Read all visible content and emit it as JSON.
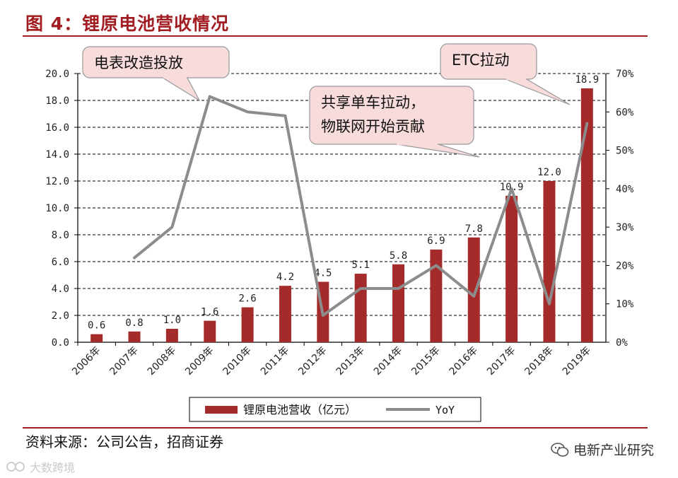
{
  "figure": {
    "title": "图 4：锂原电池营收情况",
    "source": "资料来源：公司公告，招商证券",
    "watermark_right": "电新产业研究",
    "watermark_left": "大数跨境",
    "watermark_right_icon": "chat-bubbles-icon",
    "watermark_left_icon": "logo-icon"
  },
  "chart_data": {
    "type": "bar",
    "categories": [
      "2006年",
      "2007年",
      "2008年",
      "2009年",
      "2010年",
      "2011年",
      "2012年",
      "2013年",
      "2014年",
      "2015年",
      "2016年",
      "2017年",
      "2018年",
      "2019年"
    ],
    "series": [
      {
        "name": "锂原电池营收（亿元）",
        "type": "bar",
        "axis": "left",
        "color": "#a52a2a",
        "values": [
          0.6,
          0.8,
          1.0,
          1.6,
          2.6,
          4.2,
          4.5,
          5.1,
          5.8,
          6.9,
          7.8,
          10.9,
          12.0,
          18.9
        ],
        "labels": [
          "0.6",
          "0.8",
          "1.0",
          "1.6",
          "2.6",
          "4.2",
          "4.5",
          "5.1",
          "5.8",
          "6.9",
          "7.8",
          "10.9",
          "12.0",
          "18.9"
        ]
      },
      {
        "name": "YoY",
        "type": "line",
        "axis": "right",
        "color": "#8c8c8c",
        "values": [
          null,
          0.22,
          0.3,
          0.64,
          0.6,
          0.59,
          0.07,
          0.14,
          0.14,
          0.2,
          0.12,
          0.4,
          0.1,
          0.57
        ]
      }
    ],
    "y_left": {
      "min": 0,
      "max": 20,
      "step": 2,
      "tick_labels": [
        "0.0",
        "2.0",
        "4.0",
        "6.0",
        "8.0",
        "10.0",
        "12.0",
        "14.0",
        "16.0",
        "18.0",
        "20.0"
      ]
    },
    "y_right": {
      "min": 0,
      "max": 0.7,
      "step": 0.1,
      "tick_labels": [
        "0%",
        "10%",
        "20%",
        "30%",
        "40%",
        "50%",
        "60%",
        "70%"
      ]
    },
    "grid": true,
    "legend_position": "bottom",
    "annotations": [
      {
        "text": [
          "电表改造投放"
        ],
        "target_index": 3
      },
      {
        "text": [
          "共享单车拉动，",
          "物联网开始贡献"
        ],
        "target_index": 11
      },
      {
        "text": [
          "ETC拉动"
        ],
        "target_index": 13
      }
    ]
  }
}
